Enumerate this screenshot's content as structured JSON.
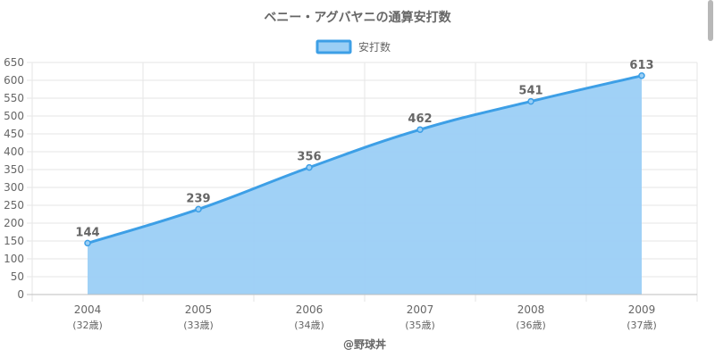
{
  "chart_data": {
    "type": "area",
    "title": "ベニー・アグバヤニの通算安打数",
    "categories": [
      "2004",
      "2005",
      "2006",
      "2007",
      "2008",
      "2009"
    ],
    "sub_labels": [
      "(32歳)",
      "(33歳)",
      "(34歳)",
      "(35歳)",
      "(36歳)",
      "(37歳)"
    ],
    "series": [
      {
        "name": "安打数",
        "values": [
          144,
          239,
          356,
          462,
          541,
          613
        ]
      }
    ],
    "ylim": [
      0,
      650
    ],
    "yticks": [
      0,
      50,
      100,
      150,
      200,
      250,
      300,
      350,
      400,
      450,
      500,
      550,
      600,
      650
    ],
    "grid": true,
    "legend": "top-center",
    "colors": {
      "line": "#3d9fe6",
      "fill": "#9bcff5",
      "grid": "#e6e6e6",
      "text": "#666666"
    }
  },
  "credit": "@野球丼"
}
